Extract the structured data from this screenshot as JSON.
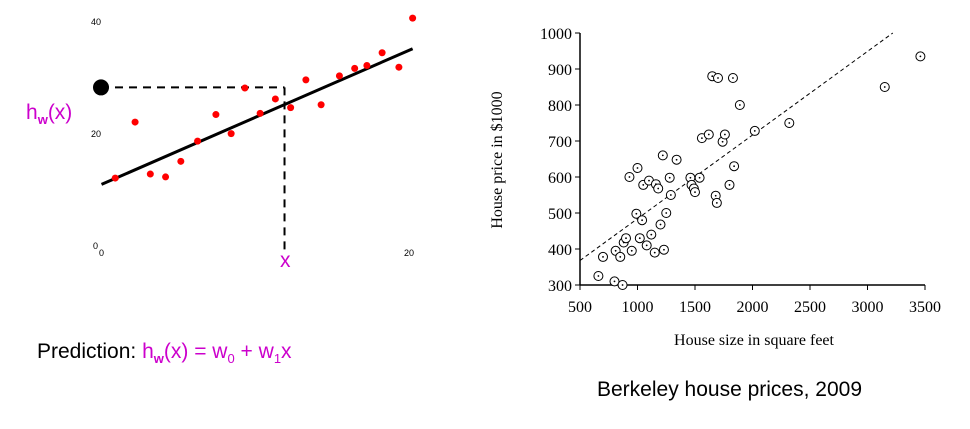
{
  "chart_data": [
    {
      "type": "scatter",
      "title": "",
      "xlim": [
        0,
        20
      ],
      "ylim": [
        0,
        40
      ],
      "x_tick_labels": [
        "0",
        "20"
      ],
      "y_tick_labels": [
        "0",
        "20",
        "40"
      ],
      "x": [
        1.0,
        2.3,
        3.3,
        4.3,
        5.3,
        6.4,
        7.6,
        8.6,
        9.5,
        10.5,
        11.5,
        12.5,
        13.5,
        14.5,
        15.7,
        16.7,
        17.5,
        18.5,
        19.6,
        20.5
      ],
      "y": [
        12.8,
        22.5,
        13.5,
        13.0,
        15.7,
        19.2,
        23.8,
        20.5,
        28.4,
        24.0,
        26.5,
        25.0,
        29.8,
        25.5,
        30.5,
        31.8,
        32.3,
        34.5,
        32.0,
        40.5
      ],
      "fit_line": [
        [
          0.1,
          11.7
        ],
        [
          20.5,
          35.2
        ]
      ],
      "marker_color": "#ff0000",
      "prediction_x_label": "x",
      "prediction_y_label": {
        "h": "h",
        "sub": "w",
        "rest": "(x)"
      },
      "prediction_x": 12.1,
      "prediction_y": 28.5,
      "accent": "#cc00cc"
    },
    {
      "type": "scatter",
      "title": "Berkeley house prices, 2009",
      "xlabel": "House size in square feet",
      "ylabel": "House price in $1000",
      "xlim": [
        500,
        3500
      ],
      "ylim": [
        300,
        1000
      ],
      "x_ticks": [
        500,
        1000,
        1500,
        2000,
        2500,
        3000,
        3500
      ],
      "y_ticks": [
        300,
        400,
        500,
        600,
        700,
        800,
        900,
        1000
      ],
      "x": [
        660,
        700,
        800,
        810,
        850,
        870,
        880,
        900,
        930,
        950,
        990,
        1000,
        1020,
        1040,
        1050,
        1080,
        1100,
        1120,
        1150,
        1160,
        1180,
        1200,
        1220,
        1230,
        1250,
        1280,
        1290,
        1340,
        1460,
        1470,
        1490,
        1500,
        1540,
        1560,
        1620,
        1650,
        1680,
        1690,
        1700,
        1740,
        1760,
        1800,
        1830,
        1840,
        1890,
        2020,
        2320,
        3150,
        3460
      ],
      "y": [
        325,
        378,
        310,
        395,
        378,
        300,
        418,
        430,
        600,
        395,
        498,
        625,
        430,
        480,
        578,
        410,
        590,
        440,
        390,
        580,
        568,
        468,
        660,
        398,
        500,
        598,
        550,
        648,
        598,
        578,
        568,
        558,
        598,
        708,
        718,
        880,
        548,
        528,
        875,
        698,
        718,
        578,
        875,
        630,
        800,
        728,
        750,
        850,
        935
      ],
      "trend_line": [
        [
          500,
          368
        ],
        [
          3220,
          1000
        ]
      ],
      "legend": "none",
      "grid": false
    }
  ],
  "captions": {
    "prediction": {
      "prefix": "Prediction: ",
      "h": "h",
      "h_sub": "w",
      "arg": "(x) = w",
      "w0_sub": "0",
      "plus": " + w",
      "w1_sub": "1",
      "x": "x"
    },
    "berkeley": "Berkeley house prices, 2009"
  }
}
